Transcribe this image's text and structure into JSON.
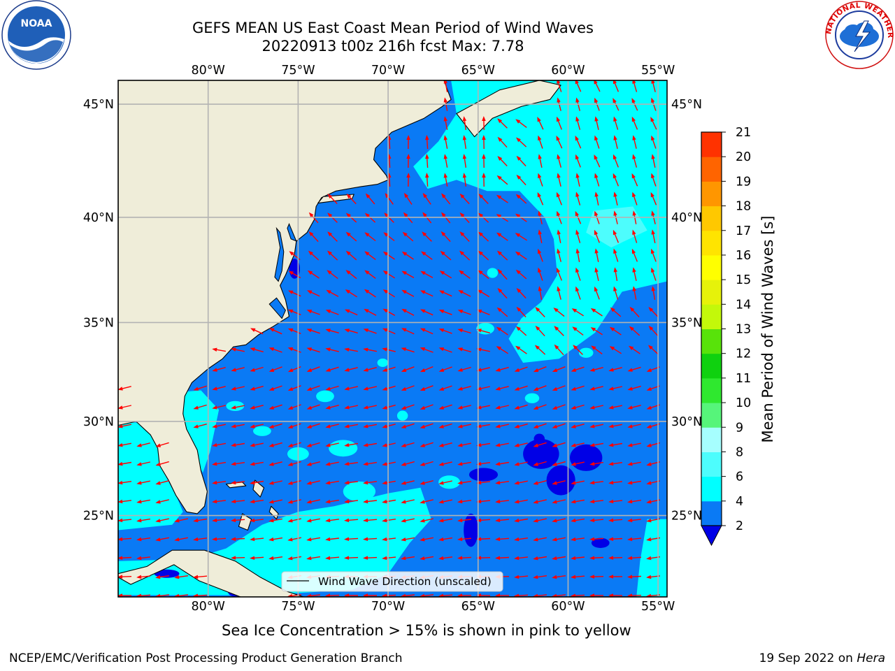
{
  "header": {
    "title": "GEFS MEAN US East Coast Mean Period of Wind Waves",
    "subtitle": "20220913 t00z 216h fcst   Max: 7.78"
  },
  "map": {
    "lon_ticks": [
      "80°W",
      "75°W",
      "70°W",
      "65°W",
      "60°W",
      "55°W"
    ],
    "lat_ticks": [
      "45°N",
      "40°N",
      "35°N",
      "30°N",
      "25°N"
    ],
    "lon_values": [
      -80,
      -75,
      -70,
      -65,
      -60,
      -55
    ],
    "lat_values": [
      45,
      40,
      35,
      30,
      25
    ],
    "extent": {
      "lon": [
        -85,
        -54.5
      ],
      "lat": [
        20.5,
        46
      ]
    },
    "legend_label": "Wind Wave Direction (unscaled)",
    "colors": {
      "land": "#efedd9",
      "sea_2_4": "#0a7af5",
      "sea_4_6": "#00ffff",
      "sea_6_8": "#4dfdfd",
      "sea_lt_2": "#0000e6",
      "arrow": "#ff0000",
      "grid": "#b3b3b3"
    }
  },
  "colorbar": {
    "label": "Mean Period of Wind Waves [s]",
    "ticks": [
      "2",
      "4",
      "6",
      "8",
      "9",
      "10",
      "11",
      "12",
      "13",
      "14",
      "15",
      "16",
      "17",
      "18",
      "19",
      "20",
      "21"
    ],
    "colors": [
      "#0a7af5",
      "#00ffff",
      "#4dfdfd",
      "#a6fefe",
      "#56f57a",
      "#2fe82f",
      "#0fd10f",
      "#58e30a",
      "#c3f80a",
      "#e6f20a",
      "#ffff00",
      "#ffe400",
      "#ffc800",
      "#ff9600",
      "#ff6400",
      "#ff3200",
      "#ff0000"
    ],
    "under_color": "#0000e6"
  },
  "captions": {
    "sea_ice": "Sea Ice Concentration > 15% is shown in pink to yellow"
  },
  "footer": {
    "left": "NCEP/EMC/Verification Post Processing Product Generation Branch",
    "right_prefix": "19 Sep 2022 on ",
    "right_host": "Hera"
  },
  "logos": {
    "noaa": "NOAA",
    "nws": "NATIONAL WEATHER SERVICE"
  }
}
